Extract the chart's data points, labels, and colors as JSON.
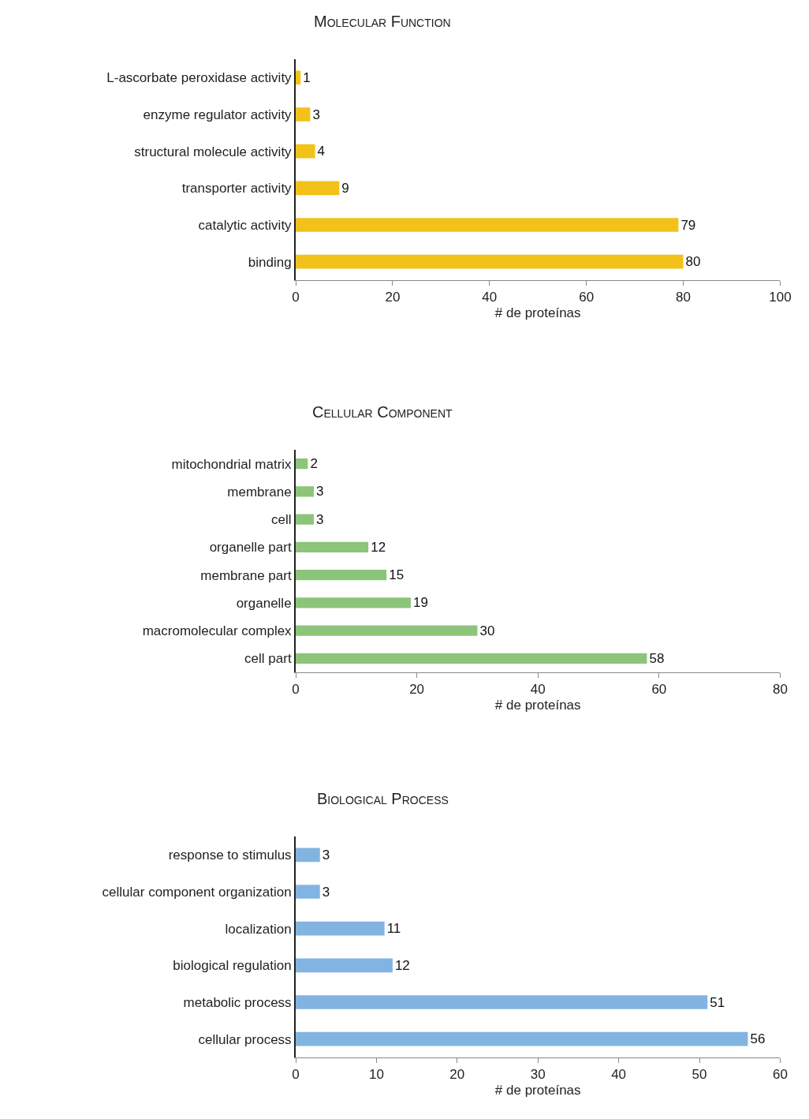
{
  "chart_data": [
    {
      "type": "bar",
      "orientation": "horizontal",
      "title": "Molecular Function",
      "categories": [
        "L-ascorbate peroxidase activity",
        "enzyme regulator activity",
        "structural molecule activity",
        "transporter activity",
        "catalytic activity",
        "binding"
      ],
      "values": [
        1,
        3,
        4,
        9,
        79,
        80
      ],
      "color": "#f2c21b",
      "xlim": [
        0,
        100
      ],
      "xticks": [
        0,
        20,
        40,
        60,
        80,
        100
      ],
      "xlabel": "# de proteínas",
      "data_labels": true
    },
    {
      "type": "bar",
      "orientation": "horizontal",
      "title": "Cellular Component",
      "categories": [
        "mitochondrial matrix",
        "membrane",
        "cell",
        "organelle part",
        "membrane part",
        "organelle",
        "macromolecular complex",
        "cell part"
      ],
      "values": [
        2,
        3,
        3,
        12,
        15,
        19,
        30,
        58
      ],
      "color": "#8cc47a",
      "xlim": [
        0,
        80
      ],
      "xticks": [
        0,
        20,
        40,
        60,
        80
      ],
      "xlabel": "# de proteínas",
      "data_labels": true
    },
    {
      "type": "bar",
      "orientation": "horizontal",
      "title": "Biological Process",
      "categories": [
        "response to stimulus",
        "cellular component organization",
        "localization",
        "biological regulation",
        "metabolic process",
        "cellular process"
      ],
      "values": [
        3,
        3,
        11,
        12,
        51,
        56
      ],
      "color": "#82b4e2",
      "xlim": [
        0,
        60
      ],
      "xticks": [
        0,
        10,
        20,
        30,
        40,
        50,
        60
      ],
      "xlabel": "# de proteínas",
      "data_labels": true
    }
  ]
}
